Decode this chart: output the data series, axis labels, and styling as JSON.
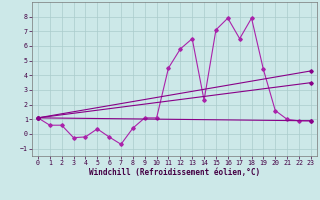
{
  "xlabel": "Windchill (Refroidissement éolien,°C)",
  "xlim": [
    -0.5,
    23.5
  ],
  "ylim": [
    -1.5,
    9.0
  ],
  "xticks": [
    0,
    1,
    2,
    3,
    4,
    5,
    6,
    7,
    8,
    9,
    10,
    11,
    12,
    13,
    14,
    15,
    16,
    17,
    18,
    19,
    20,
    21,
    22,
    23
  ],
  "yticks": [
    -1,
    0,
    1,
    2,
    3,
    4,
    5,
    6,
    7,
    8
  ],
  "background_color": "#cce8e8",
  "grid_color": "#aacccc",
  "line_color_dark": "#880088",
  "line_color_mid": "#aa22aa",
  "series1_x": [
    0,
    1,
    2,
    3,
    4,
    5,
    6,
    7,
    8,
    9,
    10,
    11,
    12,
    13,
    14,
    15,
    16,
    17,
    18,
    19,
    20,
    21,
    22,
    23
  ],
  "series1_y": [
    1.1,
    0.6,
    0.6,
    -0.25,
    -0.2,
    0.35,
    -0.2,
    -0.7,
    0.4,
    1.1,
    1.1,
    4.5,
    5.8,
    6.5,
    2.3,
    7.1,
    7.9,
    6.5,
    7.9,
    4.4,
    1.6,
    1.0,
    0.9,
    0.9
  ],
  "series2_x": [
    0,
    23
  ],
  "series2_y": [
    1.1,
    4.3
  ],
  "series3_x": [
    0,
    23
  ],
  "series3_y": [
    1.1,
    3.5
  ],
  "series4_x": [
    0,
    23
  ],
  "series4_y": [
    1.1,
    0.9
  ],
  "tick_fontsize": 4.8,
  "xlabel_fontsize": 5.5,
  "marker_size": 1.8,
  "linewidth": 0.8
}
